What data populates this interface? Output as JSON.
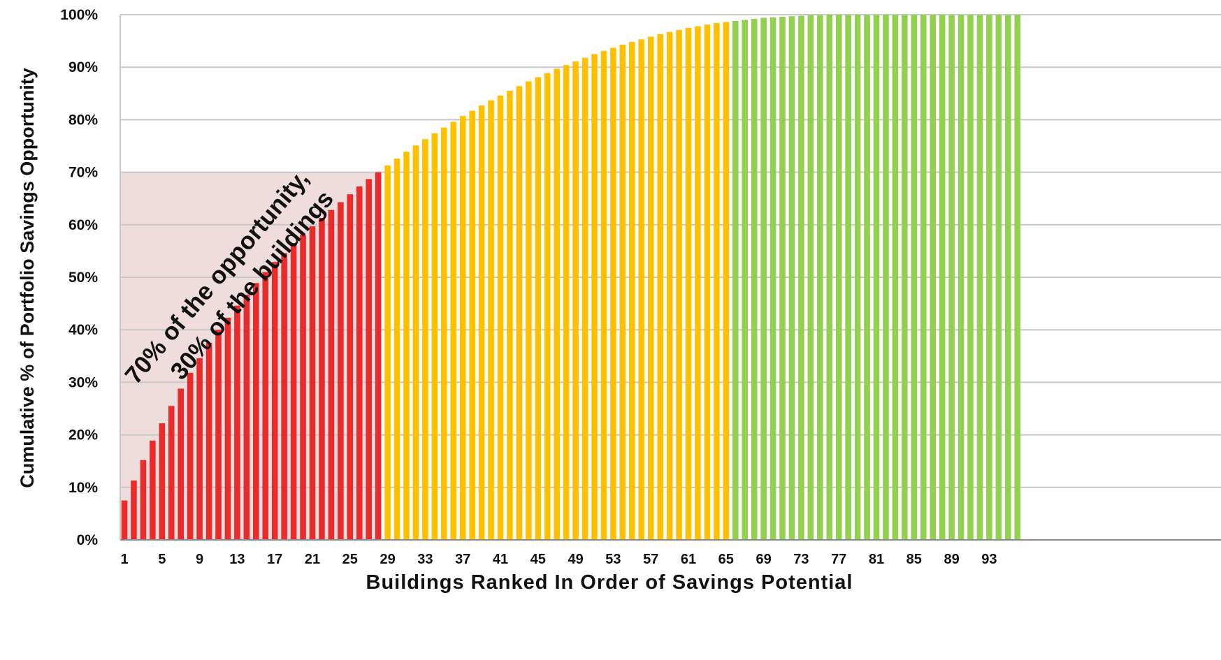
{
  "chart_data": {
    "type": "bar",
    "title": "",
    "xlabel": "Buildings  Ranked In Order of Savings Potential",
    "ylabel": "Cumulative % of Portfolio  Savings Opportunity",
    "ylim": [
      0,
      100
    ],
    "yticks": [
      "0%",
      "10%",
      "20%",
      "30%",
      "40%",
      "50%",
      "60%",
      "70%",
      "80%",
      "90%",
      "100%"
    ],
    "xticks": [
      "1",
      "5",
      "9",
      "13",
      "17",
      "21",
      "25",
      "29",
      "33",
      "37",
      "41",
      "45",
      "49",
      "53",
      "57",
      "61",
      "65",
      "69",
      "73",
      "77",
      "81",
      "85",
      "89",
      "93"
    ],
    "grid": true,
    "legend": "none",
    "annotation": {
      "line1": "70% of the opportunity,",
      "line2": "30% of the buildings"
    },
    "highlight_region": {
      "x_to": 28,
      "y_to": 70,
      "color": "#efdcdc"
    },
    "segments": [
      {
        "from": 1,
        "to": 28,
        "color": "#ea2b2b"
      },
      {
        "from": 29,
        "to": 65,
        "color": "#ffc000"
      },
      {
        "from": 66,
        "to": 96,
        "color": "#92d050"
      }
    ],
    "categories": [
      1,
      2,
      3,
      4,
      5,
      6,
      7,
      8,
      9,
      10,
      11,
      12,
      13,
      14,
      15,
      16,
      17,
      18,
      19,
      20,
      21,
      22,
      23,
      24,
      25,
      26,
      27,
      28,
      29,
      30,
      31,
      32,
      33,
      34,
      35,
      36,
      37,
      38,
      39,
      40,
      41,
      42,
      43,
      44,
      45,
      46,
      47,
      48,
      49,
      50,
      51,
      52,
      53,
      54,
      55,
      56,
      57,
      58,
      59,
      60,
      61,
      62,
      63,
      64,
      65,
      66,
      67,
      68,
      69,
      70,
      71,
      72,
      73,
      74,
      75,
      76,
      77,
      78,
      79,
      80,
      81,
      82,
      83,
      84,
      85,
      86,
      87,
      88,
      89,
      90,
      91,
      92,
      93,
      94,
      95,
      96
    ],
    "values": [
      7.5,
      11.3,
      15.2,
      18.9,
      22.2,
      25.5,
      28.8,
      31.8,
      34.6,
      37.5,
      40.0,
      42.3,
      44.6,
      46.7,
      48.9,
      51.0,
      52.9,
      54.6,
      56.4,
      58.1,
      59.7,
      61.3,
      62.8,
      64.3,
      65.8,
      67.3,
      68.7,
      70.0,
      71.3,
      72.6,
      73.9,
      75.1,
      76.3,
      77.4,
      78.5,
      79.6,
      80.7,
      81.7,
      82.7,
      83.7,
      84.6,
      85.5,
      86.4,
      87.3,
      88.1,
      88.9,
      89.7,
      90.4,
      91.1,
      91.8,
      92.5,
      93.1,
      93.7,
      94.3,
      94.8,
      95.3,
      95.8,
      96.3,
      96.7,
      97.1,
      97.5,
      97.8,
      98.1,
      98.4,
      98.6,
      98.8,
      99.0,
      99.2,
      99.4,
      99.5,
      99.6,
      99.7,
      99.8,
      99.9,
      99.9,
      100,
      100,
      100,
      100,
      100,
      100,
      100,
      100,
      100,
      100,
      100,
      100,
      100,
      100,
      100,
      100,
      100,
      100,
      100,
      100,
      100
    ]
  }
}
